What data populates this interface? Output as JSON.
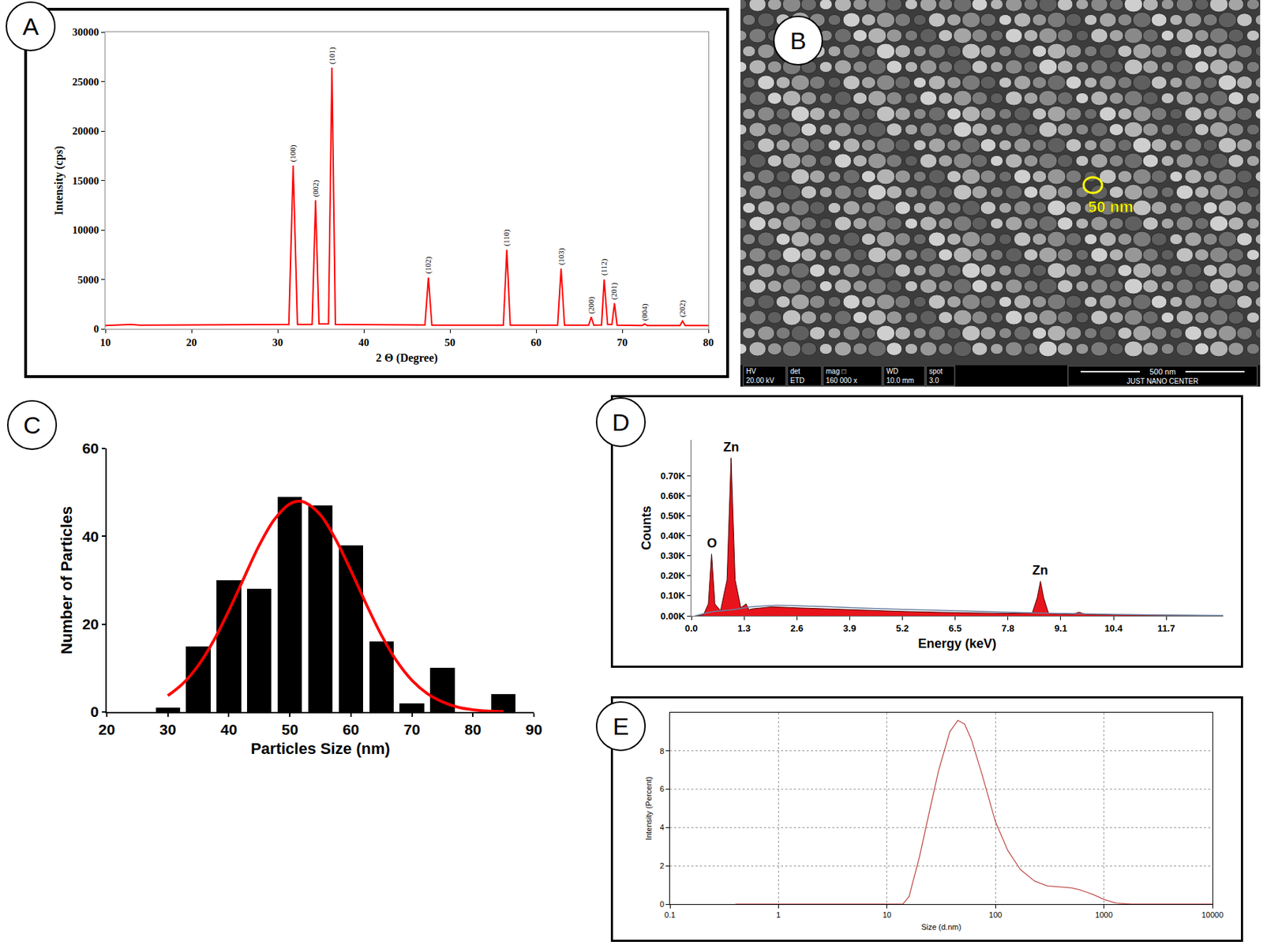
{
  "chart_data": [
    {
      "panel": "A",
      "type": "line",
      "x_label": "2 Θ (Degree)",
      "y_label": "Intensity (cps)",
      "x": [
        10,
        12,
        13,
        14,
        28,
        31.3,
        31.8,
        32.3,
        34.0,
        34.4,
        34.8,
        35.9,
        36.3,
        36.7,
        47.1,
        47.5,
        47.9,
        56.2,
        56.6,
        57.0,
        62.5,
        62.9,
        63.3,
        66.1,
        66.4,
        66.7,
        67.6,
        67.9,
        68.3,
        68.8,
        69.1,
        69.4,
        72.3,
        72.6,
        72.9,
        76.7,
        77.0,
        77.3,
        80
      ],
      "values": [
        350,
        400,
        450,
        380,
        400,
        450,
        16500,
        450,
        450,
        13000,
        500,
        500,
        26400,
        450,
        400,
        5200,
        380,
        380,
        8000,
        380,
        380,
        6100,
        380,
        380,
        1200,
        380,
        400,
        5000,
        450,
        450,
        2600,
        380,
        350,
        500,
        350,
        350,
        800,
        350,
        350
      ],
      "color": "#ff0000",
      "xlim": [
        10,
        80
      ],
      "xticks": [
        10,
        20,
        30,
        40,
        50,
        60,
        70,
        80
      ],
      "ylim": [
        0,
        30000
      ],
      "yticks": [
        0,
        5000,
        10000,
        15000,
        20000,
        25000,
        30000
      ],
      "grid": false,
      "annotations": [
        {
          "x": 31.8,
          "y": 16500,
          "text": "(100)"
        },
        {
          "x": 34.4,
          "y": 13000,
          "text": "(002)"
        },
        {
          "x": 36.3,
          "y": 26400,
          "text": "(101)"
        },
        {
          "x": 47.5,
          "y": 5200,
          "text": "(102)"
        },
        {
          "x": 56.6,
          "y": 8000,
          "text": "(110)"
        },
        {
          "x": 62.9,
          "y": 6100,
          "text": "(103)"
        },
        {
          "x": 66.4,
          "y": 1200,
          "text": "(200)"
        },
        {
          "x": 67.9,
          "y": 5000,
          "text": "(112)"
        },
        {
          "x": 69.1,
          "y": 2600,
          "text": "(201)"
        },
        {
          "x": 72.6,
          "y": 500,
          "text": "(004)"
        },
        {
          "x": 77.0,
          "y": 800,
          "text": "(202)"
        }
      ]
    },
    {
      "panel": "B",
      "type": "image",
      "marker_label": "50 nm",
      "info_bar": {
        "headers": [
          "HV",
          "det",
          "mag □",
          "WD",
          "spot"
        ],
        "values": [
          "20.00 kV",
          "ETD",
          "160 000 x",
          "10.0 mm",
          "3.0"
        ]
      },
      "scale_bar": "500 nm",
      "credit": "JUST NANO CENTER"
    },
    {
      "panel": "C",
      "type": "histogram",
      "x_label": "Particles Size (nm)",
      "y_label": "Number of Particles",
      "bins": [
        27.5,
        32.5,
        37.5,
        42.5,
        47.5,
        52.5,
        57.5,
        62.5,
        67.5,
        72.5,
        77.5,
        82.5,
        87.5
      ],
      "counts": [
        1,
        15,
        30,
        28,
        49,
        47,
        38,
        16,
        2,
        10,
        0,
        4
      ],
      "color": "#000000",
      "curve": {
        "x": [
          30,
          32.5,
          35,
          37.5,
          40,
          42.5,
          45,
          47.5,
          50,
          51.5,
          52.5,
          55,
          57.5,
          60,
          62.5,
          65,
          67.5,
          70,
          72.5,
          75,
          77.5,
          80,
          82.5,
          85
        ],
        "values": [
          3.7,
          6.5,
          10.6,
          16.2,
          23.1,
          30.6,
          38.0,
          43.9,
          47.4,
          48,
          47.7,
          44.9,
          39.3,
          32.2,
          24.6,
          17.5,
          11.6,
          7.2,
          4.2,
          2.3,
          1.1,
          0.5,
          0.2,
          0.1
        ],
        "color": "#ff0000"
      },
      "xlim": [
        20,
        90
      ],
      "xticks": [
        20,
        30,
        40,
        50,
        60,
        70,
        80,
        90
      ],
      "ylim": [
        0,
        60
      ],
      "yticks": [
        0,
        20,
        40,
        60
      ],
      "grid": false
    },
    {
      "panel": "D",
      "type": "area",
      "x_label": "Energy (keV)",
      "y_label": "Counts",
      "x": [
        0.1,
        0.3,
        0.42,
        0.5,
        0.58,
        0.72,
        0.88,
        0.98,
        1.08,
        1.22,
        1.35,
        1.42,
        1.5,
        1.7,
        2.0,
        2.6,
        3.9,
        5.2,
        6.5,
        7.8,
        8.4,
        8.52,
        8.6,
        8.68,
        8.8,
        9.4,
        9.55,
        9.7,
        10.4,
        11.7,
        13.1
      ],
      "values": [
        0,
        5,
        60,
        310,
        60,
        25,
        180,
        790,
        180,
        40,
        60,
        30,
        35,
        40,
        45,
        40,
        30,
        22,
        16,
        12,
        15,
        90,
        173,
        90,
        12,
        8,
        18,
        8,
        5,
        2,
        1
      ],
      "color": "#e8141c",
      "background": {
        "x": [
          0.1,
          0.5,
          1.0,
          1.5,
          2.0,
          3.0,
          4.0,
          5.2,
          6.5,
          7.8,
          9.1,
          10.4,
          11.7,
          13.1
        ],
        "values": [
          0,
          20,
          30,
          45,
          52,
          48,
          40,
          32,
          25,
          18,
          12,
          7,
          4,
          2
        ],
        "color": "#6a7fa0"
      },
      "xlim": [
        0,
        13.1
      ],
      "xticks": [
        {
          "value": 0,
          "label": "0.0"
        },
        1.3,
        2.6,
        3.9,
        5.2,
        6.5,
        7.8,
        9.1,
        10.4,
        11.7
      ],
      "ylim": [
        0,
        880
      ],
      "yticks": [
        {
          "value": 0,
          "label": "0.00K"
        },
        {
          "value": 100,
          "label": "0.10K"
        },
        {
          "value": 200,
          "label": "0.20K"
        },
        {
          "value": 300,
          "label": "0.30K"
        },
        {
          "value": 400,
          "label": "0.40K"
        },
        {
          "value": 500,
          "label": "0.50K"
        },
        {
          "value": 600,
          "label": "0.60K"
        },
        {
          "value": 700,
          "label": "0.70K"
        }
      ],
      "grid": false,
      "annotations": [
        {
          "x": 0.5,
          "y": 310,
          "text": "O"
        },
        {
          "x": 0.98,
          "y": 790,
          "text": "Zn"
        },
        {
          "x": 8.6,
          "y": 173,
          "text": "Zn"
        }
      ]
    },
    {
      "panel": "E",
      "type": "line",
      "x_label": "Size (d.nm)",
      "y_label": "Intensity (Percent)",
      "log": "x",
      "x": [
        0.4,
        1,
        5,
        14,
        16,
        20,
        25,
        30,
        38,
        45,
        52,
        60,
        75,
        100,
        130,
        170,
        230,
        300,
        400,
        500,
        600,
        800,
        1000,
        1300,
        1800,
        5000,
        10000
      ],
      "values": [
        0,
        0,
        0,
        0,
        0.4,
        2.5,
        5,
        7,
        9,
        9.6,
        9.4,
        8.6,
        6.8,
        4.3,
        2.8,
        1.8,
        1.2,
        0.95,
        0.9,
        0.85,
        0.75,
        0.5,
        0.25,
        0.05,
        0,
        0,
        0
      ],
      "color": "#c0504d",
      "xlim": [
        0.1,
        10000
      ],
      "xticks": [
        0.1,
        1,
        10,
        100,
        1000,
        10000
      ],
      "ylim": [
        0,
        10
      ],
      "yticks": [
        0,
        2,
        4,
        6,
        8
      ],
      "grid": true
    }
  ]
}
